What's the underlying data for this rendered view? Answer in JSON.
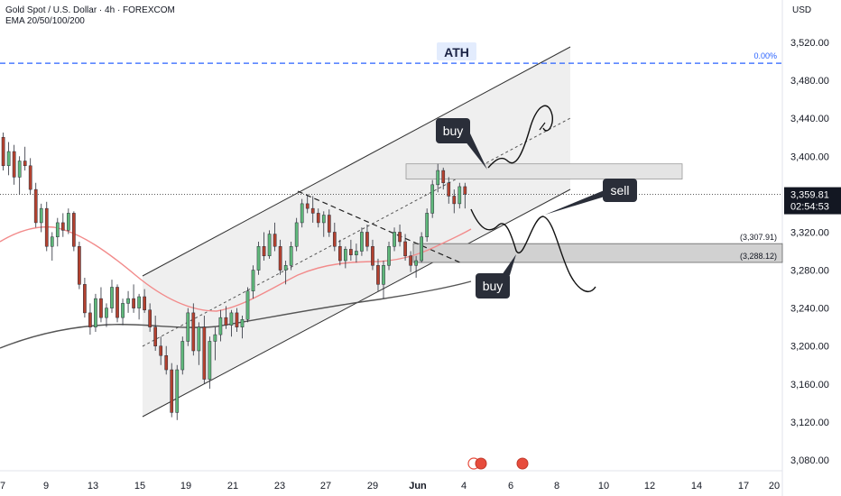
{
  "header": {
    "title": "Gold Spot / U.S. Dollar · 4h · FOREXCOM",
    "indicator": "EMA 20/50/100/200",
    "currency": "USD"
  },
  "colors": {
    "bull": "#26a69a",
    "bear": "#ef5350",
    "bullDark": "#089981",
    "bearDark": "#f23645",
    "channel": "#e8e8e8",
    "zone": "#d1d1d1",
    "ema": "#f28b8b",
    "ema200": "#555555",
    "ath": "#2962ff",
    "priceTag": "#131722"
  },
  "chart_data": {
    "type": "candlestick",
    "symbol": "Gold Spot / U.S. Dollar",
    "timeframe": "4h",
    "y_ticks": [
      "3,080.00",
      "3,120.00",
      "3,160.00",
      "3,200.00",
      "3,240.00",
      "3,280.00",
      "3,320.00",
      "3,360.00",
      "3,400.00",
      "3,440.00",
      "3,480.00",
      "3,520.00"
    ],
    "y_tick_values": [
      3080,
      3120,
      3160,
      3200,
      3240,
      3280,
      3320,
      3360,
      3400,
      3440,
      3480,
      3520
    ],
    "x_ticks": [
      "7",
      "9",
      "13",
      "15",
      "19",
      "21",
      "23",
      "27",
      "29",
      "Jun",
      "4",
      "6",
      "8",
      "10",
      "12",
      "14",
      "17",
      "20"
    ],
    "ylim": [
      3065,
      3560
    ],
    "current_price": "3,359.81",
    "countdown": "02:54:53",
    "ath_label": "ATH",
    "ath_price": 3498,
    "fib_label": "0.00%",
    "zone_upper_label": "(3,307.91)",
    "zone_lower_label": "(3,288.12)",
    "zone_upper": 3307.91,
    "zone_lower": 3288.12,
    "resistance_zone": [
      3376,
      3392
    ],
    "annotations": [
      "buy",
      "sell",
      "buy"
    ],
    "candles": [
      [
        3420,
        3425,
        3385,
        3390
      ],
      [
        3390,
        3415,
        3380,
        3405
      ],
      [
        3405,
        3412,
        3370,
        3378
      ],
      [
        3378,
        3400,
        3360,
        3395
      ],
      [
        3395,
        3410,
        3385,
        3390
      ],
      [
        3390,
        3398,
        3360,
        3365
      ],
      [
        3365,
        3372,
        3325,
        3330
      ],
      [
        3330,
        3350,
        3320,
        3345
      ],
      [
        3345,
        3352,
        3300,
        3305
      ],
      [
        3305,
        3320,
        3290,
        3315
      ],
      [
        3315,
        3335,
        3305,
        3330
      ],
      [
        3330,
        3340,
        3315,
        3322
      ],
      [
        3322,
        3345,
        3318,
        3340
      ],
      [
        3340,
        3342,
        3300,
        3305
      ],
      [
        3305,
        3310,
        3260,
        3265
      ],
      [
        3265,
        3272,
        3230,
        3235
      ],
      [
        3235,
        3245,
        3212,
        3220
      ],
      [
        3220,
        3255,
        3215,
        3250
      ],
      [
        3250,
        3262,
        3225,
        3230
      ],
      [
        3230,
        3245,
        3220,
        3240
      ],
      [
        3240,
        3270,
        3235,
        3262
      ],
      [
        3262,
        3265,
        3225,
        3230
      ],
      [
        3230,
        3250,
        3222,
        3245
      ],
      [
        3245,
        3258,
        3235,
        3250
      ],
      [
        3250,
        3265,
        3235,
        3240
      ],
      [
        3240,
        3255,
        3228,
        3252
      ],
      [
        3252,
        3260,
        3235,
        3238
      ],
      [
        3238,
        3245,
        3215,
        3220
      ],
      [
        3220,
        3232,
        3195,
        3200
      ],
      [
        3200,
        3210,
        3180,
        3190
      ],
      [
        3190,
        3200,
        3170,
        3175
      ],
      [
        3175,
        3182,
        3125,
        3130
      ],
      [
        3130,
        3180,
        3122,
        3175
      ],
      [
        3175,
        3210,
        3170,
        3205
      ],
      [
        3205,
        3240,
        3200,
        3235
      ],
      [
        3235,
        3245,
        3190,
        3195
      ],
      [
        3195,
        3225,
        3180,
        3220
      ],
      [
        3220,
        3232,
        3160,
        3165
      ],
      [
        3165,
        3210,
        3155,
        3205
      ],
      [
        3205,
        3220,
        3185,
        3212
      ],
      [
        3212,
        3238,
        3205,
        3230
      ],
      [
        3230,
        3242,
        3218,
        3222
      ],
      [
        3222,
        3238,
        3210,
        3235
      ],
      [
        3235,
        3240,
        3215,
        3220
      ],
      [
        3220,
        3232,
        3208,
        3228
      ],
      [
        3228,
        3262,
        3225,
        3258
      ],
      [
        3258,
        3285,
        3250,
        3280
      ],
      [
        3280,
        3310,
        3275,
        3305
      ],
      [
        3305,
        3320,
        3290,
        3295
      ],
      [
        3295,
        3322,
        3292,
        3318
      ],
      [
        3318,
        3330,
        3300,
        3305
      ],
      [
        3305,
        3312,
        3275,
        3280
      ],
      [
        3280,
        3290,
        3265,
        3285
      ],
      [
        3285,
        3310,
        3280,
        3305
      ],
      [
        3305,
        3335,
        3300,
        3330
      ],
      [
        3330,
        3355,
        3325,
        3350
      ],
      [
        3350,
        3360,
        3340,
        3345
      ],
      [
        3345,
        3358,
        3330,
        3340
      ],
      [
        3340,
        3345,
        3325,
        3330
      ],
      [
        3330,
        3342,
        3315,
        3338
      ],
      [
        3338,
        3344,
        3315,
        3320
      ],
      [
        3320,
        3330,
        3300,
        3305
      ],
      [
        3305,
        3312,
        3285,
        3290
      ],
      [
        3290,
        3305,
        3282,
        3302
      ],
      [
        3302,
        3312,
        3290,
        3296
      ],
      [
        3296,
        3308,
        3288,
        3300
      ],
      [
        3300,
        3325,
        3295,
        3320
      ],
      [
        3320,
        3328,
        3300,
        3305
      ],
      [
        3305,
        3312,
        3280,
        3285
      ],
      [
        3285,
        3292,
        3258,
        3265
      ],
      [
        3265,
        3290,
        3250,
        3285
      ],
      [
        3285,
        3310,
        3280,
        3305
      ],
      [
        3305,
        3325,
        3300,
        3320
      ],
      [
        3320,
        3328,
        3305,
        3310
      ],
      [
        3310,
        3318,
        3290,
        3295
      ],
      [
        3295,
        3300,
        3278,
        3285
      ],
      [
        3285,
        3295,
        3272,
        3290
      ],
      [
        3290,
        3320,
        3288,
        3315
      ],
      [
        3315,
        3345,
        3310,
        3340
      ],
      [
        3340,
        3375,
        3335,
        3370
      ],
      [
        3370,
        3392,
        3362,
        3385
      ],
      [
        3385,
        3388,
        3365,
        3372
      ],
      [
        3372,
        3378,
        3350,
        3358
      ],
      [
        3358,
        3365,
        3340,
        3350
      ],
      [
        3350,
        3372,
        3345,
        3368
      ],
      [
        3368,
        3372,
        3345,
        3360
      ]
    ]
  }
}
